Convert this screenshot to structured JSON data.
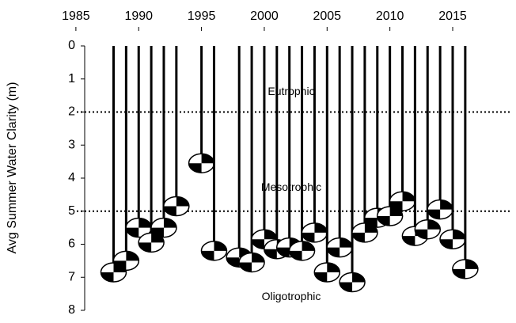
{
  "chart_data": {
    "type": "secchi",
    "y_label": "Avg Summer Water Clarity (m)",
    "x": [
      1988,
      1989,
      1990,
      1991,
      1992,
      1993,
      1995,
      1996,
      1998,
      1999,
      2000,
      2001,
      2002,
      2003,
      2004,
      2005,
      2006,
      2007,
      2008,
      2009,
      2010,
      2011,
      2012,
      2013,
      2014,
      2015,
      2016
    ],
    "values": [
      6.85,
      6.5,
      5.5,
      5.95,
      5.5,
      4.85,
      3.55,
      6.2,
      6.4,
      6.55,
      5.85,
      6.15,
      6.1,
      6.2,
      5.65,
      6.85,
      6.1,
      7.15,
      5.65,
      5.2,
      5.15,
      4.7,
      5.75,
      5.55,
      4.95,
      5.85,
      6.75
    ],
    "color": "#000000",
    "xlim": [
      1985.7,
      2019.6
    ],
    "xticks": [
      1985,
      1990,
      1995,
      2000,
      2005,
      2010,
      2015
    ],
    "ylim": [
      0,
      8
    ],
    "yticks": [
      0,
      1,
      2,
      3,
      4,
      5,
      6,
      7,
      8
    ],
    "y_inverted": true,
    "reference_lines": [
      2,
      5
    ],
    "annotations": [
      {
        "text": "Eutrophic",
        "y": 1.4
      },
      {
        "text": "Mesotrophic",
        "y": 4.3
      },
      {
        "text": "Oligotrophic",
        "y": 7.6
      }
    ]
  }
}
